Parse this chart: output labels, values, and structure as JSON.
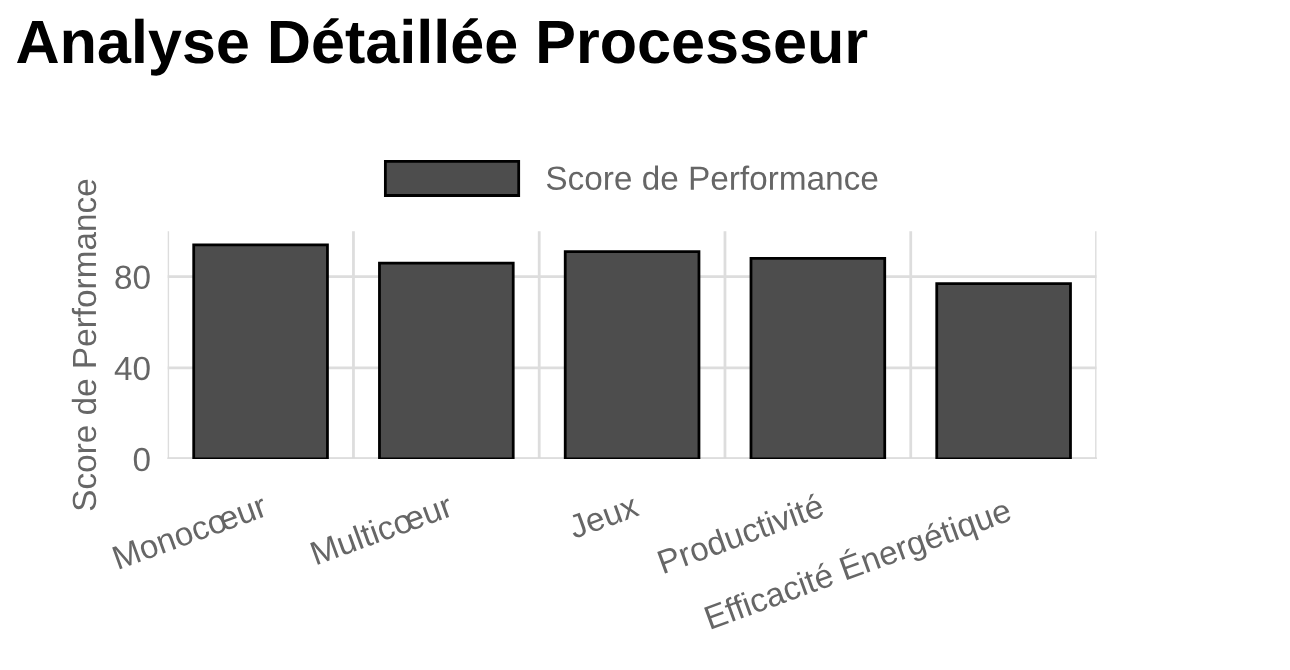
{
  "chart_data": {
    "type": "bar",
    "title": "Analyse Détaillée Processeur",
    "ylabel": "Score de Performance",
    "categories": [
      "Monocœur",
      "Multicœur",
      "Jeux",
      "Productivité",
      "Efficacité Énergétique"
    ],
    "series": [
      {
        "name": "Score de Performance",
        "color": "#4d4d4d",
        "values": [
          94,
          86,
          91,
          88,
          77
        ]
      }
    ],
    "ylim": [
      0,
      100
    ],
    "yticks": [
      0,
      40,
      80
    ],
    "grid": true,
    "legend": "top"
  }
}
